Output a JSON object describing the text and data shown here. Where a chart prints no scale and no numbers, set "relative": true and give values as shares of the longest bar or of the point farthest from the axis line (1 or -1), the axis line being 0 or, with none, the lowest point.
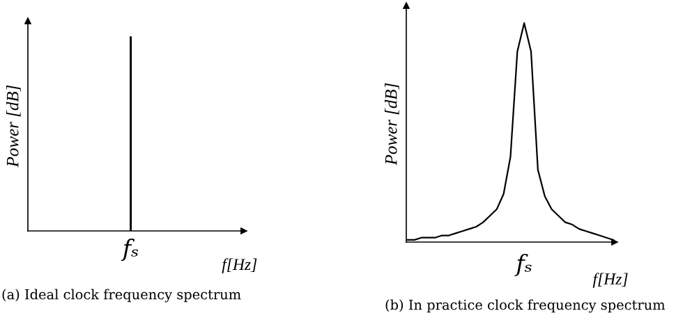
{
  "chart_data": [
    {
      "type": "bar",
      "title": "(a) Ideal clock frequency spectrum",
      "xlabel": "f[Hz]",
      "ylabel": "Power [dB]",
      "categories": [
        "fₛ"
      ],
      "values": [
        1
      ],
      "color": "#000000",
      "relative": true,
      "grid": false
    },
    {
      "type": "line",
      "title": "(b) In practice clock frequency spectrum",
      "xlabel": "f[Hz]",
      "ylabel": "Power [dB]",
      "categories": [
        null,
        null,
        null,
        null,
        null,
        null,
        null,
        null,
        null,
        null,
        null,
        null,
        null,
        null,
        null,
        null,
        null,
        null,
        null,
        null,
        null,
        null,
        null,
        null,
        null,
        null,
        null,
        null,
        null,
        null,
        null
      ],
      "series": [
        {
          "color": "#000000",
          "values": [
            0.01,
            0.01,
            0.02,
            0.02,
            0.02,
            0.03,
            0.03,
            0.04,
            0.05,
            0.06,
            0.07,
            0.09,
            0.12,
            0.15,
            0.22,
            0.39,
            0.87,
            1,
            0.87,
            0.33,
            0.21,
            0.15,
            0.12,
            0.09,
            0.08,
            0.06,
            0.05,
            0.04,
            0.03,
            0.02,
            0.01
          ]
        }
      ],
      "annotations": [
        "fₛ"
      ],
      "relative": true,
      "grid": false
    }
  ]
}
